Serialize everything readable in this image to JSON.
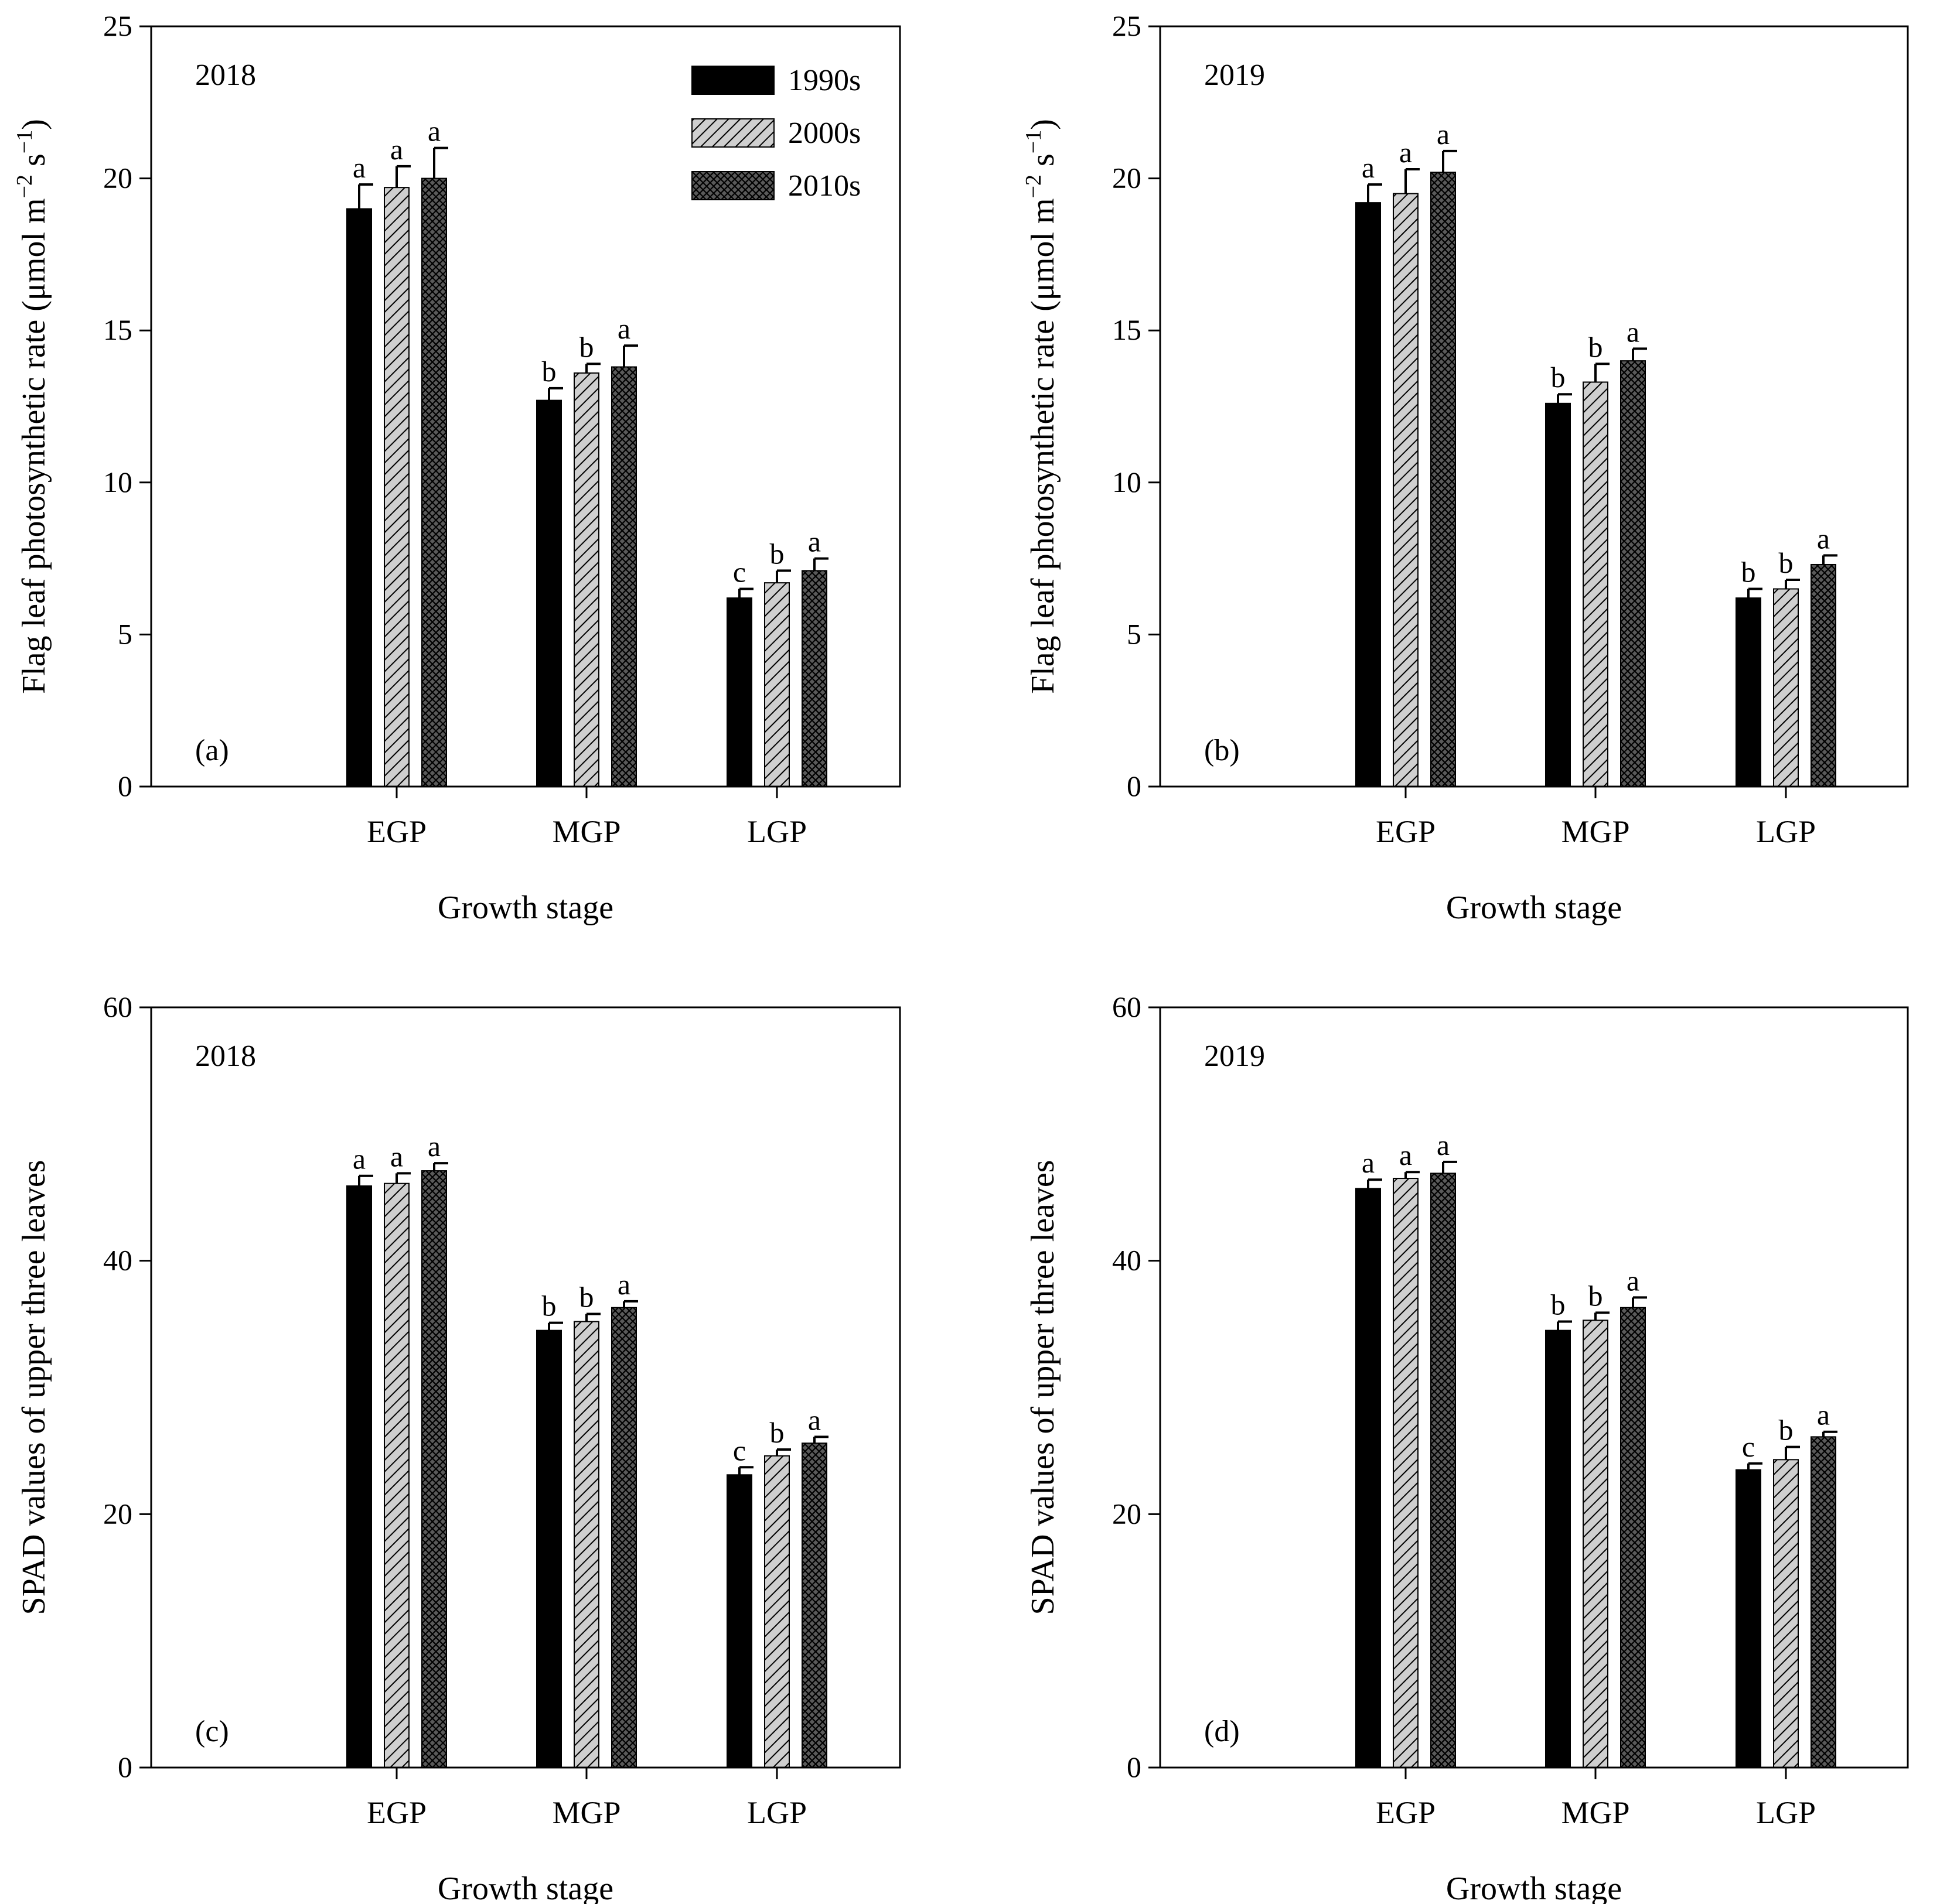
{
  "legend": {
    "series": [
      {
        "name": "1990s",
        "pattern": "solid"
      },
      {
        "name": "2000s",
        "pattern": "diagonal"
      },
      {
        "name": "2010s",
        "pattern": "crosshatch"
      }
    ]
  },
  "colors": {
    "solid_fill": "#000000",
    "diagonal_bg": "#cfcfcf",
    "crosshatch_bg": "#5a5a5a",
    "axis": "#000000"
  },
  "chart_data": [
    {
      "type": "bar",
      "panel": "(a)",
      "year": "2018",
      "xlabel": "Growth stage",
      "ylabel_pre": "Flag leaf photosynthetic rate (μmol m",
      "ylabel_sup1": "−2",
      "ylabel_mid": " s",
      "ylabel_sup2": "−1",
      "ylabel_post": ")",
      "ylim": [
        0,
        25
      ],
      "yticks": [
        0,
        5,
        10,
        15,
        20,
        25
      ],
      "categories": [
        "EGP",
        "MGP",
        "LGP"
      ],
      "series": [
        {
          "name": "1990s",
          "values": [
            19.0,
            12.7,
            6.2
          ],
          "errors": [
            0.8,
            0.4,
            0.3
          ],
          "letters": [
            "a",
            "b",
            "c"
          ]
        },
        {
          "name": "2000s",
          "values": [
            19.7,
            13.6,
            6.7
          ],
          "errors": [
            0.7,
            0.3,
            0.4
          ],
          "letters": [
            "a",
            "b",
            "b"
          ]
        },
        {
          "name": "2010s",
          "values": [
            20.0,
            13.8,
            7.1
          ],
          "errors": [
            1.0,
            0.7,
            0.4
          ],
          "letters": [
            "a",
            "a",
            "a"
          ]
        }
      ],
      "show_legend": true
    },
    {
      "type": "bar",
      "panel": "(b)",
      "year": "2019",
      "xlabel": "Growth stage",
      "ylabel_pre": "Flag leaf photosynthetic rate (μmol m",
      "ylabel_sup1": "−2",
      "ylabel_mid": " s",
      "ylabel_sup2": "−1",
      "ylabel_post": ")",
      "ylim": [
        0,
        25
      ],
      "yticks": [
        0,
        5,
        10,
        15,
        20,
        25
      ],
      "categories": [
        "EGP",
        "MGP",
        "LGP"
      ],
      "series": [
        {
          "name": "1990s",
          "values": [
            19.2,
            12.6,
            6.2
          ],
          "errors": [
            0.6,
            0.3,
            0.3
          ],
          "letters": [
            "a",
            "b",
            "b"
          ]
        },
        {
          "name": "2000s",
          "values": [
            19.5,
            13.3,
            6.5
          ],
          "errors": [
            0.8,
            0.6,
            0.3
          ],
          "letters": [
            "a",
            "b",
            "b"
          ]
        },
        {
          "name": "2010s",
          "values": [
            20.2,
            14.0,
            7.3
          ],
          "errors": [
            0.7,
            0.4,
            0.3
          ],
          "letters": [
            "a",
            "a",
            "a"
          ]
        }
      ],
      "show_legend": false
    },
    {
      "type": "bar",
      "panel": "(c)",
      "year": "2018",
      "xlabel": "Growth stage",
      "ylabel_pre": "SPAD values of upper three leaves",
      "ylim": [
        0,
        60
      ],
      "yticks": [
        0,
        20,
        40,
        60
      ],
      "categories": [
        "EGP",
        "MGP",
        "LGP"
      ],
      "series": [
        {
          "name": "1990s",
          "values": [
            45.9,
            34.5,
            23.1
          ],
          "errors": [
            0.8,
            0.6,
            0.6
          ],
          "letters": [
            "a",
            "b",
            "c"
          ]
        },
        {
          "name": "2000s",
          "values": [
            46.1,
            35.2,
            24.6
          ],
          "errors": [
            0.8,
            0.6,
            0.5
          ],
          "letters": [
            "a",
            "b",
            "b"
          ]
        },
        {
          "name": "2010s",
          "values": [
            47.1,
            36.3,
            25.6
          ],
          "errors": [
            0.6,
            0.5,
            0.5
          ],
          "letters": [
            "a",
            "a",
            "a"
          ]
        }
      ],
      "show_legend": false
    },
    {
      "type": "bar",
      "panel": "(d)",
      "year": "2019",
      "xlabel": "Growth stage",
      "ylabel_pre": "SPAD values of upper three leaves",
      "ylim": [
        0,
        60
      ],
      "yticks": [
        0,
        20,
        40,
        60
      ],
      "categories": [
        "EGP",
        "MGP",
        "LGP"
      ],
      "series": [
        {
          "name": "1990s",
          "values": [
            45.7,
            34.5,
            23.5
          ],
          "errors": [
            0.7,
            0.7,
            0.5
          ],
          "letters": [
            "a",
            "b",
            "c"
          ]
        },
        {
          "name": "2000s",
          "values": [
            46.5,
            35.3,
            24.3
          ],
          "errors": [
            0.5,
            0.6,
            1.0
          ],
          "letters": [
            "a",
            "b",
            "b"
          ]
        },
        {
          "name": "2010s",
          "values": [
            46.9,
            36.3,
            26.1
          ],
          "errors": [
            0.9,
            0.8,
            0.4
          ],
          "letters": [
            "a",
            "a",
            "a"
          ]
        }
      ],
      "show_legend": false
    }
  ]
}
